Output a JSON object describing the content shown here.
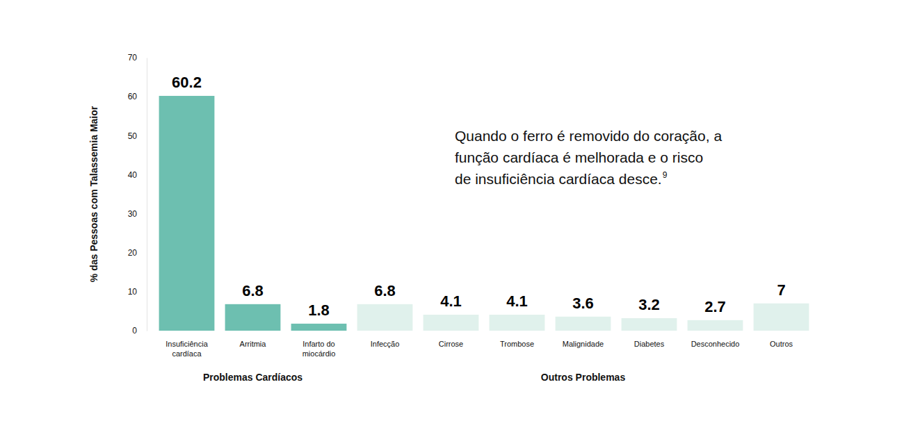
{
  "chart_data": {
    "type": "bar",
    "y_label": "% das Pessoas com Talassemia Maior",
    "categories": [
      "Insuficiência\ncardíaca",
      "Arritmia",
      "Infarto do\nmiocárdio",
      "Infecção",
      "Cirrose",
      "Trombose",
      "Malignidade",
      "Diabetes",
      "Desconhecido",
      "Outros"
    ],
    "category_groups": [
      "Problemas Cardíacos",
      "Problemas Cardíacos",
      "Problemas Cardíacos",
      "Outros Problemas",
      "Outros Problemas",
      "Outros Problemas",
      "Outros Problemas",
      "Outros Problemas",
      "Outros Problemas",
      "Outros Problemas"
    ],
    "values": [
      60.2,
      6.8,
      1.8,
      6.8,
      4.1,
      4.1,
      3.6,
      3.2,
      2.7,
      7
    ],
    "colors": [
      "#6dbfb0",
      "#6dbfb0",
      "#6dbfb0",
      "#e0f1ec",
      "#e0f1ec",
      "#e0f1ec",
      "#e0f1ec",
      "#e0f1ec",
      "#e0f1ec",
      "#e0f1ec"
    ],
    "ylim": [
      0,
      70
    ],
    "yticks": [
      0,
      10,
      20,
      30,
      40,
      50,
      60,
      70
    ],
    "grid": false,
    "data_labels": true,
    "annotation": [
      "Quando o ferro é removido do coração, a",
      "função cardíaca é melhorada e o risco",
      "de insuficiência cardíaca desce."
    ],
    "annotation_ref": "9"
  }
}
